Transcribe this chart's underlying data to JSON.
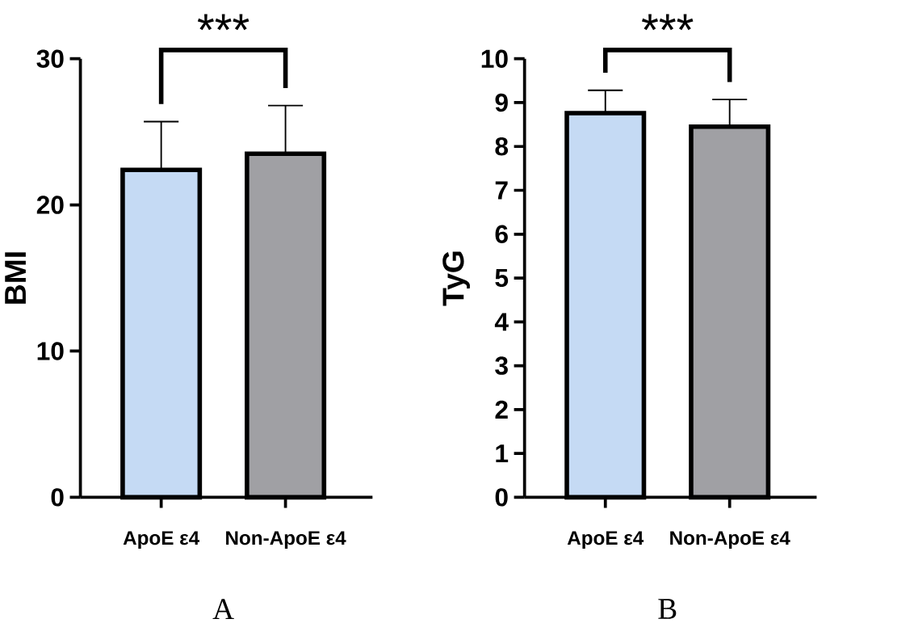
{
  "chart_data": [
    {
      "type": "bar",
      "ylabel": "BMI",
      "categories": [
        "ApoE ε4",
        "Non-ApoE ε4"
      ],
      "values": [
        22.4,
        23.5
      ],
      "colors": [
        "#c5daf4",
        "#a0a0a4"
      ],
      "errors": [
        [
          22.4,
          25.7
        ],
        [
          23.5,
          26.8
        ]
      ],
      "ylim": [
        0,
        30
      ],
      "yticks": [
        0,
        10,
        20,
        30
      ],
      "annotations": [
        "***",
        "A"
      ]
    },
    {
      "type": "bar",
      "ylabel": "TyG",
      "categories": [
        "ApoE ε4",
        "Non-ApoE ε4"
      ],
      "values": [
        8.76,
        8.45
      ],
      "colors": [
        "#c5daf4",
        "#a0a0a4"
      ],
      "errors": [
        [
          8.76,
          9.28
        ],
        [
          8.45,
          9.07
        ]
      ],
      "ylim": [
        0,
        10
      ],
      "yticks": [
        0,
        1,
        2,
        3,
        4,
        5,
        6,
        7,
        8,
        9,
        10
      ],
      "annotations": [
        "***",
        "B"
      ]
    }
  ]
}
